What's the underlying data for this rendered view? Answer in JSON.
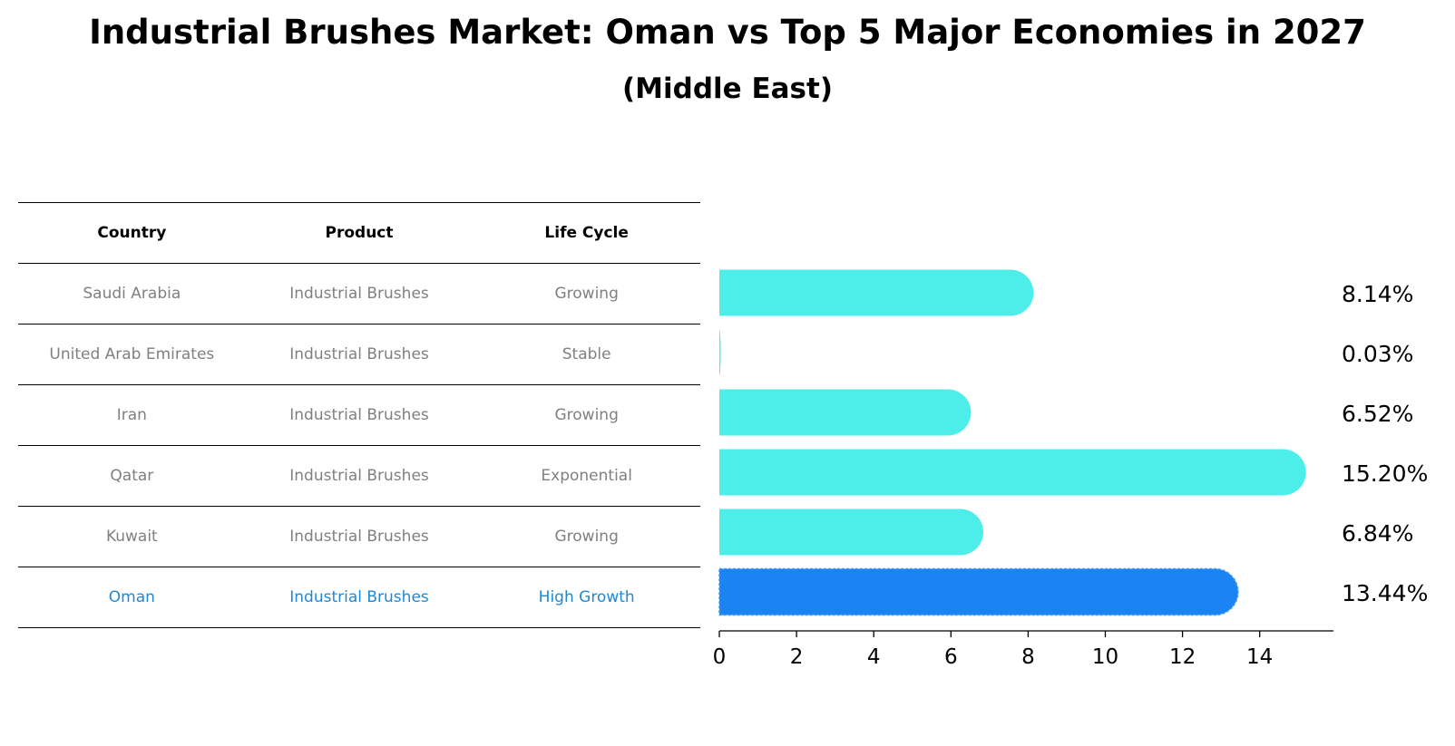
{
  "title": "Industrial Brushes Market: Oman vs Top 5 Major Economies in 2027",
  "subtitle": "(Middle East)",
  "table": {
    "headers": [
      "Country",
      "Product",
      "Life Cycle"
    ],
    "rows": [
      [
        "Saudi Arabia",
        "Industrial Brushes",
        "Growing"
      ],
      [
        "United Arab Emirates",
        "Industrial Brushes",
        "Stable"
      ],
      [
        "Iran",
        "Industrial Brushes",
        "Growing"
      ],
      [
        "Qatar",
        "Industrial Brushes",
        "Exponential"
      ],
      [
        "Kuwait",
        "Industrial Brushes",
        "Growing"
      ],
      [
        "Oman",
        "Industrial Brushes",
        "High Growth"
      ]
    ],
    "highlight_row": 5
  },
  "chart_data": {
    "type": "bar",
    "orientation": "horizontal",
    "categories": [
      "Saudi Arabia",
      "United Arab Emirates",
      "Iran",
      "Qatar",
      "Kuwait",
      "Oman"
    ],
    "values": [
      8.14,
      0.03,
      6.52,
      15.2,
      6.84,
      13.44
    ],
    "value_labels": [
      "8.14%",
      "0.03%",
      "6.52%",
      "15.20%",
      "6.84%",
      "13.44%"
    ],
    "xlim": [
      0,
      16
    ],
    "xticks": [
      0,
      2,
      4,
      6,
      8,
      10,
      12,
      14
    ],
    "grid": false,
    "colors": {
      "default": "#4dede9",
      "highlight": "#1a84f2"
    },
    "highlight_index": 5
  }
}
